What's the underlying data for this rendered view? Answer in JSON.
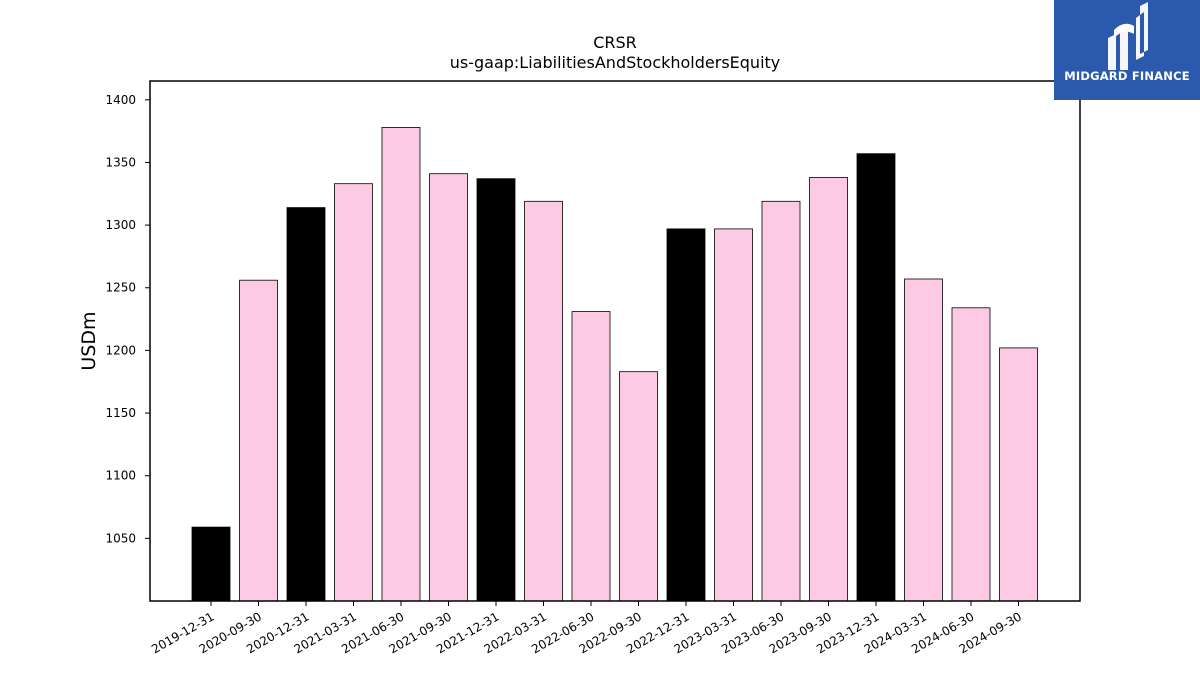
{
  "chart_data": {
    "type": "bar",
    "title": "CRSR",
    "subtitle": "us-gaap:LiabilitiesAndStockholdersEquity",
    "xlabel": "",
    "ylabel": "USDm",
    "ylim": [
      1000,
      1415
    ],
    "yticks": [
      1050,
      1100,
      1150,
      1200,
      1250,
      1300,
      1350,
      1400
    ],
    "grid": false,
    "categories": [
      "2019-12-31",
      "2020-09-30",
      "2020-12-31",
      "2021-03-31",
      "2021-06-30",
      "2021-09-30",
      "2021-12-31",
      "2022-03-31",
      "2022-06-30",
      "2022-09-30",
      "2022-12-31",
      "2023-03-31",
      "2023-06-30",
      "2023-09-30",
      "2023-12-31",
      "2024-03-31",
      "2024-06-30",
      "2024-09-30"
    ],
    "values": [
      1059,
      1256,
      1314,
      1333,
      1378,
      1341,
      1337,
      1319,
      1231,
      1183,
      1297,
      1297,
      1319,
      1338,
      1357,
      1257,
      1234,
      1202
    ],
    "bar_colors": [
      "#000000",
      "#fccae4",
      "#000000",
      "#fccae4",
      "#fccae4",
      "#fccae4",
      "#000000",
      "#fccae4",
      "#fccae4",
      "#fccae4",
      "#000000",
      "#fccae4",
      "#fccae4",
      "#fccae4",
      "#000000",
      "#fccae4",
      "#fccae4",
      "#fccae4"
    ],
    "annual_color": "#000000",
    "quarter_color": "#fccae4",
    "edge_color": "#000000"
  },
  "logo": {
    "text": "MIDGARD FINANCE",
    "background": "#2b5aad",
    "icon": "midgard-logo-icon"
  }
}
